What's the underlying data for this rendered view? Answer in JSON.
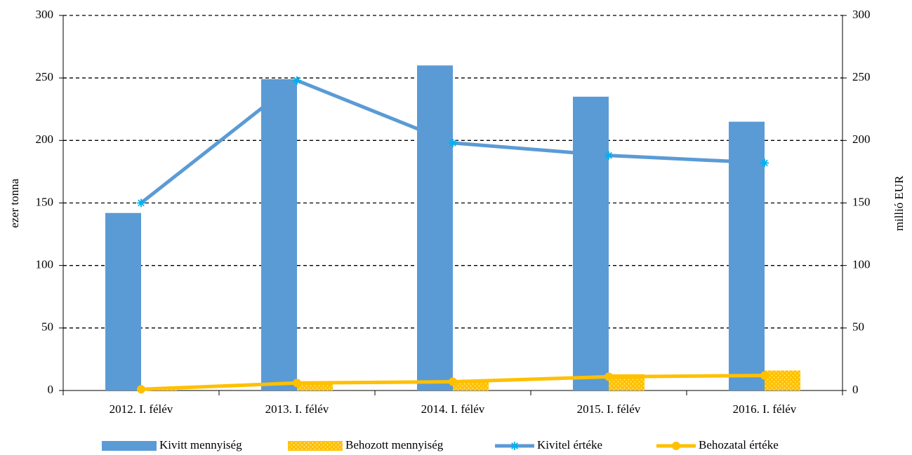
{
  "chart_data": {
    "type": "bar_line",
    "categories": [
      "2012. I. félév",
      "2013. I. félév",
      "2014. I. félév",
      "2015. I. félév",
      "2016. I. félév"
    ],
    "ylabel": "ezer tonna",
    "y2label": "millió  EUR",
    "ylim": [
      0,
      300
    ],
    "yticks": [
      0,
      50,
      100,
      150,
      200,
      250,
      300
    ],
    "y2lim": [
      0,
      300
    ],
    "y2ticks": [
      0,
      50,
      100,
      150,
      200,
      250,
      300
    ],
    "grid": true,
    "legend": "bottom",
    "series": [
      {
        "name": "Kivitt mennyiség",
        "type": "bar",
        "color": "#5b9bd5",
        "values": [
          142,
          249,
          260,
          235,
          215
        ]
      },
      {
        "name": "Behozott mennyiség",
        "type": "bar",
        "color": "#ffc000",
        "values": [
          1,
          7,
          8,
          13,
          16
        ]
      },
      {
        "name": "Kivitel értéke",
        "type": "line",
        "axis": "y2",
        "marker": "asterisk",
        "color": "#5b9bd5",
        "values": [
          150,
          248,
          198,
          188,
          182
        ]
      },
      {
        "name": "Behozatal értéke",
        "type": "line",
        "axis": "y2",
        "marker": "circle",
        "color": "#ffc000",
        "values": [
          1,
          6,
          7,
          11,
          12
        ]
      }
    ]
  }
}
